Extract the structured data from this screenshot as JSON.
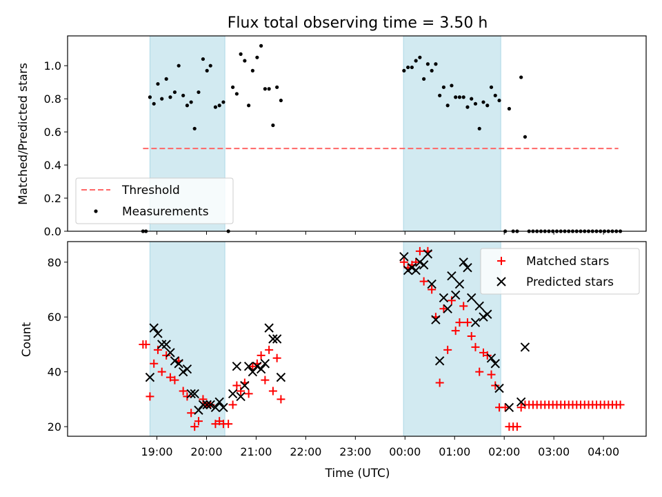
{
  "chart_data": [
    {
      "type": "scatter",
      "title": "Flux total observing time = 3.50 h",
      "ylabel": "Matched/Predicted stars",
      "xlabel": "",
      "ylim": [
        0,
        1.18
      ],
      "yticks": [
        0.0,
        0.2,
        0.4,
        0.6,
        0.8,
        1.0
      ],
      "ytick_labels": [
        "0.0",
        "0.2",
        "0.4",
        "0.6",
        "0.8",
        "1.0"
      ],
      "x_unit": "hours since 18:00 UTC",
      "shaded_intervals": [
        [
          0.86,
          2.37
        ],
        [
          5.97,
          7.93
        ]
      ],
      "shade_color": "#add8e6",
      "legend_position": "lower-left",
      "threshold": {
        "name": "Threshold",
        "y": 0.5,
        "x_start": 0.72,
        "x_end": 10.3,
        "color": "#ff6666",
        "style": "dashed"
      },
      "series": [
        {
          "name": "Measurements",
          "color": "#000000",
          "x": [
            0.72,
            0.78,
            0.86,
            0.94,
            1.02,
            1.1,
            1.19,
            1.27,
            1.36,
            1.44,
            1.53,
            1.61,
            1.69,
            1.76,
            1.84,
            1.93,
            2.01,
            2.08,
            2.18,
            2.26,
            2.34,
            2.44,
            2.53,
            2.61,
            2.69,
            2.77,
            2.85,
            2.93,
            3.02,
            3.1,
            3.18,
            3.26,
            3.34,
            3.42,
            3.5,
            5.98,
            6.06,
            6.14,
            6.22,
            6.3,
            6.38,
            6.46,
            6.54,
            6.62,
            6.7,
            6.78,
            6.86,
            6.94,
            7.02,
            7.1,
            7.18,
            7.26,
            7.34,
            7.42,
            7.5,
            7.58,
            7.66,
            7.74,
            7.82,
            7.9,
            8.02,
            8.1,
            8.18,
            8.26,
            8.34,
            8.42,
            8.5,
            8.58,
            8.66,
            8.74,
            8.82,
            8.9,
            8.98,
            9.06,
            9.14,
            9.22,
            9.3,
            9.38,
            9.46,
            9.54,
            9.62,
            9.7,
            9.78,
            9.86,
            9.94,
            10.02,
            10.1,
            10.18,
            10.26,
            10.34
          ],
          "y": [
            0.0,
            0.0,
            0.81,
            0.77,
            0.89,
            0.8,
            0.92,
            0.81,
            0.84,
            1.0,
            0.82,
            0.76,
            0.78,
            0.62,
            0.84,
            1.04,
            0.97,
            1.0,
            0.75,
            0.76,
            0.78,
            0.0,
            0.87,
            0.83,
            1.07,
            1.03,
            0.76,
            0.97,
            1.05,
            1.12,
            0.86,
            0.86,
            0.64,
            0.87,
            0.79,
            0.97,
            0.99,
            0.99,
            1.03,
            1.05,
            0.92,
            1.01,
            0.97,
            1.01,
            0.82,
            0.87,
            0.76,
            0.88,
            0.81,
            0.81,
            0.81,
            0.75,
            0.8,
            0.77,
            0.62,
            0.78,
            0.76,
            0.87,
            0.82,
            0.79,
            0.0,
            0.74,
            0.0,
            0.0,
            0.93,
            0.57,
            0.0,
            0.0,
            0.0,
            0.0,
            0.0,
            0.0,
            0.0,
            0.0,
            0.0,
            0.0,
            0.0,
            0.0,
            0.0,
            0.0,
            0.0,
            0.0,
            0.0,
            0.0,
            0.0,
            0.0,
            0.0,
            0.0,
            0.0,
            0.0
          ]
        }
      ]
    },
    {
      "type": "scatter",
      "ylabel": "Count",
      "xlabel": "Time (UTC)",
      "ylim": [
        16.5,
        87.5
      ],
      "yticks": [
        20,
        40,
        60,
        80
      ],
      "ytick_labels": [
        "20",
        "40",
        "60",
        "80"
      ],
      "xlim": [
        -0.8,
        10.86
      ],
      "xticks": [
        1,
        2,
        3,
        4,
        5,
        6,
        7,
        8,
        9,
        10
      ],
      "xtick_labels": [
        "19:00",
        "20:00",
        "21:00",
        "22:00",
        "23:00",
        "00:00",
        "01:00",
        "02:00",
        "03:00",
        "04:00"
      ],
      "x_unit": "hours since 18:00 UTC",
      "shaded_intervals": [
        [
          0.86,
          2.37
        ],
        [
          5.97,
          7.93
        ]
      ],
      "shade_color": "#add8e6",
      "legend_position": "upper-right",
      "series": [
        {
          "name": "Matched stars",
          "marker": "plus",
          "color": "#ff0000",
          "x": [
            0.72,
            0.78,
            0.86,
            0.94,
            1.02,
            1.1,
            1.19,
            1.27,
            1.36,
            1.44,
            1.53,
            1.61,
            1.69,
            1.76,
            1.84,
            1.93,
            2.01,
            2.08,
            2.18,
            2.26,
            2.34,
            2.44,
            2.53,
            2.61,
            2.69,
            2.77,
            2.85,
            2.93,
            3.02,
            3.1,
            3.18,
            3.26,
            3.34,
            3.42,
            3.5,
            5.98,
            6.06,
            6.14,
            6.22,
            6.3,
            6.38,
            6.46,
            6.54,
            6.62,
            6.7,
            6.78,
            6.86,
            6.94,
            7.02,
            7.1,
            7.18,
            7.26,
            7.34,
            7.42,
            7.5,
            7.58,
            7.66,
            7.74,
            7.82,
            7.9,
            8.02,
            8.1,
            8.18,
            8.26,
            8.34,
            8.42,
            8.5,
            8.58,
            8.66,
            8.74,
            8.82,
            8.9,
            8.98,
            9.06,
            9.14,
            9.22,
            9.3,
            9.38,
            9.46,
            9.54,
            9.62,
            9.7,
            9.78,
            9.86,
            9.94,
            10.02,
            10.1,
            10.18,
            10.26,
            10.34
          ],
          "y": [
            50,
            50,
            31,
            43,
            48,
            40,
            46,
            38,
            37,
            44,
            33,
            31,
            25,
            20,
            22,
            30,
            28,
            28,
            21,
            22,
            21,
            21,
            28,
            35,
            33,
            36,
            32,
            42,
            43,
            46,
            37,
            48,
            33,
            45,
            30,
            80,
            78,
            79,
            80,
            84,
            73,
            84,
            70,
            60,
            36,
            63,
            48,
            66,
            55,
            58,
            64,
            58,
            53,
            49,
            40,
            47,
            46,
            39,
            35,
            27,
            27,
            20,
            20,
            20,
            27,
            28,
            28,
            28,
            28,
            28,
            28,
            28,
            28,
            28,
            28,
            28,
            28,
            28,
            28,
            28,
            28,
            28,
            28,
            28,
            28,
            28,
            28,
            28,
            28,
            28
          ]
        },
        {
          "name": "Predicted stars",
          "marker": "x",
          "color": "#000000",
          "x": [
            0.86,
            0.94,
            1.02,
            1.1,
            1.19,
            1.27,
            1.36,
            1.44,
            1.53,
            1.61,
            1.69,
            1.76,
            1.84,
            1.93,
            2.01,
            2.08,
            2.18,
            2.26,
            2.34,
            2.53,
            2.61,
            2.69,
            2.77,
            2.85,
            2.93,
            3.02,
            3.1,
            3.18,
            3.26,
            3.34,
            3.42,
            3.5,
            5.98,
            6.06,
            6.14,
            6.22,
            6.3,
            6.38,
            6.46,
            6.54,
            6.62,
            6.7,
            6.78,
            6.86,
            6.94,
            7.02,
            7.1,
            7.18,
            7.26,
            7.34,
            7.42,
            7.5,
            7.58,
            7.66,
            7.74,
            7.82,
            7.9,
            8.1,
            8.34,
            8.42
          ],
          "y": [
            38,
            56,
            54,
            50,
            50,
            47,
            44,
            43,
            40,
            41,
            32,
            32,
            26,
            28,
            28,
            28,
            27,
            29,
            27,
            32,
            42,
            31,
            35,
            42,
            40,
            42,
            41,
            43,
            56,
            52,
            52,
            38,
            82,
            77,
            78,
            77,
            80,
            79,
            83,
            72,
            59,
            44,
            67,
            63,
            75,
            68,
            72,
            80,
            78,
            67,
            58,
            64,
            60,
            61,
            45,
            43,
            34,
            27,
            29,
            49
          ]
        }
      ]
    }
  ]
}
